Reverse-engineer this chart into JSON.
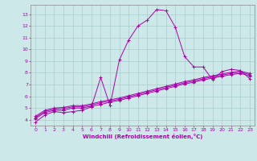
{
  "xlabel": "Windchill (Refroidissement éolien,°C)",
  "bg_color": "#cce8e8",
  "grid_color": "#aacccc",
  "line_color": "#aa00aa",
  "xlim": [
    -0.5,
    23.5
  ],
  "ylim": [
    3.5,
    13.8
  ],
  "yticks": [
    4,
    5,
    6,
    7,
    8,
    9,
    10,
    11,
    12,
    13
  ],
  "xticks": [
    0,
    1,
    2,
    3,
    4,
    5,
    6,
    7,
    8,
    9,
    10,
    11,
    12,
    13,
    14,
    15,
    16,
    17,
    18,
    19,
    20,
    21,
    22,
    23
  ],
  "series": [
    {
      "x": [
        0,
        1,
        2,
        3,
        4,
        5,
        6,
        7,
        8,
        9,
        10,
        11,
        12,
        13,
        14,
        15,
        16,
        17,
        18,
        19,
        20,
        21,
        22,
        23
      ],
      "y": [
        3.8,
        4.4,
        4.7,
        4.6,
        4.7,
        4.8,
        5.1,
        7.6,
        5.2,
        9.1,
        10.8,
        12.0,
        12.5,
        13.4,
        13.3,
        11.9,
        9.4,
        8.5,
        8.5,
        7.4,
        8.1,
        8.3,
        8.2,
        7.5
      ],
      "marker": "+"
    },
    {
      "x": [
        0,
        1,
        2,
        3,
        4,
        5,
        6,
        7,
        8,
        9,
        10,
        11,
        12,
        13,
        14,
        15,
        16,
        17,
        18,
        19,
        20,
        21,
        22,
        23
      ],
      "y": [
        4.1,
        4.6,
        4.8,
        4.8,
        5.0,
        5.0,
        5.15,
        5.3,
        5.5,
        5.65,
        5.85,
        6.05,
        6.25,
        6.45,
        6.65,
        6.85,
        7.05,
        7.2,
        7.4,
        7.55,
        7.7,
        7.85,
        7.95,
        7.75
      ],
      "marker": "+"
    },
    {
      "x": [
        0,
        1,
        2,
        3,
        4,
        5,
        6,
        7,
        8,
        9,
        10,
        11,
        12,
        13,
        14,
        15,
        16,
        17,
        18,
        19,
        20,
        21,
        22,
        23
      ],
      "y": [
        4.2,
        4.7,
        4.9,
        4.95,
        5.1,
        5.1,
        5.25,
        5.45,
        5.6,
        5.75,
        5.95,
        6.15,
        6.35,
        6.55,
        6.75,
        6.95,
        7.15,
        7.3,
        7.5,
        7.65,
        7.8,
        7.95,
        8.05,
        7.85
      ],
      "marker": "^"
    },
    {
      "x": [
        0,
        1,
        2,
        3,
        4,
        5,
        6,
        7,
        8,
        9,
        10,
        11,
        12,
        13,
        14,
        15,
        16,
        17,
        18,
        19,
        20,
        21,
        22,
        23
      ],
      "y": [
        4.3,
        4.8,
        5.0,
        5.05,
        5.2,
        5.2,
        5.35,
        5.55,
        5.7,
        5.85,
        6.05,
        6.25,
        6.45,
        6.65,
        6.85,
        7.05,
        7.25,
        7.4,
        7.6,
        7.75,
        7.9,
        8.05,
        8.15,
        7.95
      ],
      "marker": "+"
    }
  ]
}
